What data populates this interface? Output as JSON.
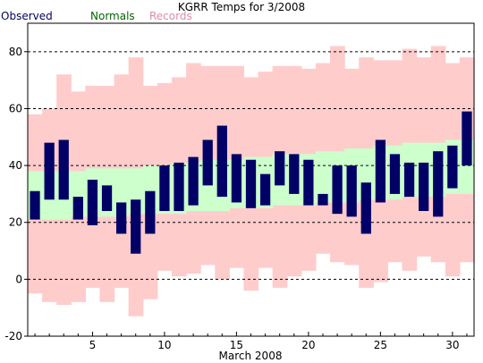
{
  "chart_data": {
    "type": "bar",
    "title": "KGRR Temps for 3/2008",
    "xlabel": "March 2008",
    "ylabel": "",
    "ylim": [
      -20,
      90
    ],
    "xlim": [
      0.5,
      31.5
    ],
    "yticks": [
      -20,
      0,
      20,
      40,
      60,
      80
    ],
    "xticks": [
      5,
      10,
      15,
      20,
      25,
      30
    ],
    "grid": "dashed horizontal",
    "legend": "top-left",
    "days": [
      1,
      2,
      3,
      4,
      5,
      6,
      7,
      8,
      9,
      10,
      11,
      12,
      13,
      14,
      15,
      16,
      17,
      18,
      19,
      20,
      21,
      22,
      23,
      24,
      25,
      26,
      27,
      28,
      29,
      30,
      31
    ],
    "series": [
      {
        "name": "Records",
        "color": "#ffcccc",
        "high": [
          58,
          60,
          72,
          66,
          68,
          68,
          72,
          78,
          68,
          69,
          71,
          76,
          75,
          75,
          75,
          71,
          73,
          75,
          75,
          74,
          76,
          82,
          74,
          78,
          77,
          77,
          81,
          78,
          82,
          76,
          78
        ],
        "low": [
          -5,
          -8,
          -9,
          -8,
          -3,
          -8,
          -3,
          -13,
          -7,
          3,
          1,
          2,
          5,
          0,
          4,
          -4,
          4,
          -3,
          1,
          3,
          9,
          6,
          5,
          -3,
          -1,
          6,
          3,
          8,
          6,
          1,
          6
        ]
      },
      {
        "name": "Normals",
        "color": "#ccffcc",
        "high": [
          38,
          38,
          38,
          38,
          39,
          39,
          39,
          39,
          40,
          40,
          41,
          41,
          42,
          42,
          42,
          43,
          43,
          44,
          44,
          44,
          45,
          45,
          46,
          46,
          47,
          47,
          48,
          48,
          48,
          49,
          49
        ],
        "low": [
          21,
          21,
          21,
          22,
          22,
          22,
          22,
          23,
          23,
          23,
          23,
          24,
          24,
          24,
          25,
          25,
          25,
          26,
          26,
          26,
          27,
          27,
          27,
          28,
          28,
          28,
          29,
          29,
          29,
          30,
          30
        ]
      },
      {
        "name": "Observed",
        "color": "#000066",
        "high": [
          31,
          48,
          49,
          29,
          35,
          33,
          27,
          28,
          31,
          40,
          41,
          43,
          49,
          54,
          44,
          42,
          37,
          45,
          44,
          42,
          30,
          40,
          40,
          34,
          49,
          44,
          41,
          41,
          45,
          47,
          59
        ],
        "low": [
          21,
          28,
          28,
          21,
          19,
          24,
          16,
          9,
          16,
          24,
          24,
          26,
          33,
          29,
          27,
          25,
          26,
          33,
          30,
          26,
          26,
          23,
          22,
          16,
          27,
          30,
          29,
          24,
          22,
          32,
          40
        ]
      }
    ]
  }
}
